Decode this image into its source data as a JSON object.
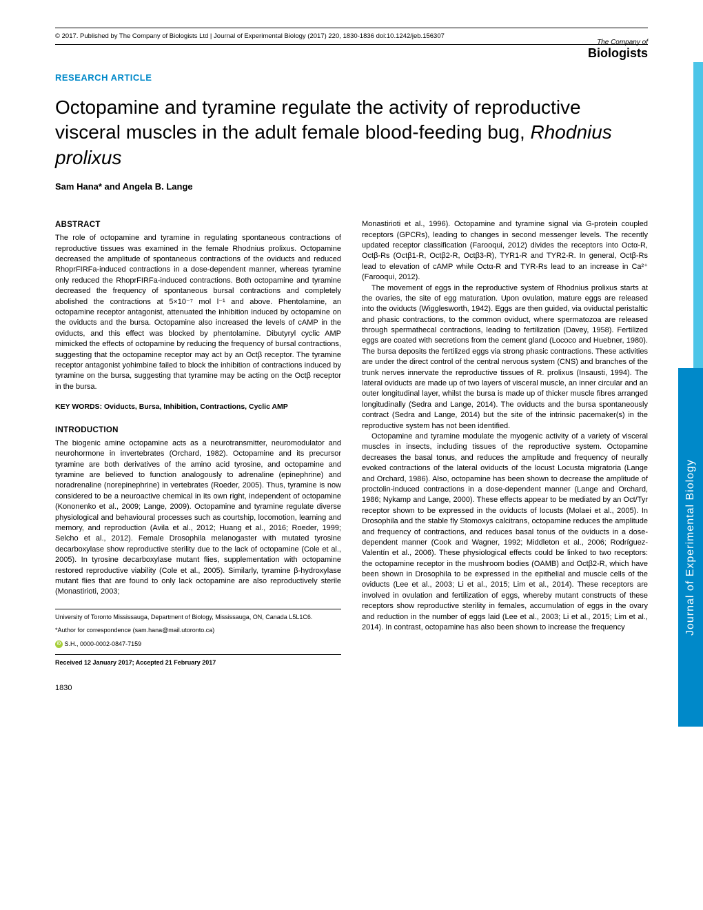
{
  "header": {
    "copyright": "© 2017. Published by The Company of Biologists Ltd | Journal of Experimental Biology (2017) 220, 1830-1836 doi:10.1242/jeb.156307"
  },
  "logo": {
    "company": "The Company of",
    "biologists": "Biologists"
  },
  "article": {
    "type": "RESEARCH ARTICLE",
    "title_part1": "Octopamine and tyramine regulate the activity of reproductive visceral muscles in the adult female blood-feeding bug, ",
    "title_italic": "Rhodnius prolixus",
    "authors": "Sam Hana* and Angela B. Lange"
  },
  "abstract": {
    "heading": "ABSTRACT",
    "text": "The role of octopamine and tyramine in regulating spontaneous contractions of reproductive tissues was examined in the female Rhodnius prolixus. Octopamine decreased the amplitude of spontaneous contractions of the oviducts and reduced RhoprFIRFa-induced contractions in a dose-dependent manner, whereas tyramine only reduced the RhoprFIRFa-induced contractions. Both octopamine and tyramine decreased the frequency of spontaneous bursal contractions and completely abolished the contractions at 5×10⁻⁷ mol l⁻¹ and above. Phentolamine, an octopamine receptor antagonist, attenuated the inhibition induced by octopamine on the oviducts and the bursa. Octopamine also increased the levels of cAMP in the oviducts, and this effect was blocked by phentolamine. Dibutyryl cyclic AMP mimicked the effects of octopamine by reducing the frequency of bursal contractions, suggesting that the octopamine receptor may act by an Octβ receptor. The tyramine receptor antagonist yohimbine failed to block the inhibition of contractions induced by tyramine on the bursa, suggesting that tyramine may be acting on the Octβ receptor in the bursa."
  },
  "keywords": {
    "text": "KEY WORDS: Oviducts, Bursa, Inhibition, Contractions, Cyclic AMP"
  },
  "introduction": {
    "heading": "INTRODUCTION",
    "para1": "The biogenic amine octopamine acts as a neurotransmitter, neuromodulator and neurohormone in invertebrates (Orchard, 1982). Octopamine and its precursor tyramine are both derivatives of the amino acid tyrosine, and octopamine and tyramine are believed to function analogously to adrenaline (epinephrine) and noradrenaline (norepinephrine) in vertebrates (Roeder, 2005). Thus, tyramine is now considered to be a neuroactive chemical in its own right, independent of octopamine (Kononenko et al., 2009; Lange, 2009). Octopamine and tyramine regulate diverse physiological and behavioural processes such as courtship, locomotion, learning and memory, and reproduction (Avila et al., 2012; Huang et al., 2016; Roeder, 1999; Selcho et al., 2012). Female Drosophila melanogaster with mutated tyrosine decarboxylase show reproductive sterility due to the lack of octopamine (Cole et al., 2005). In tyrosine decarboxylase mutant flies, supplementation with octopamine restored reproductive viability (Cole et al., 2005). Similarly, tyramine β-hydroxylase mutant flies that are found to only lack octopamine are also reproductively sterile (Monastirioti, 2003;"
  },
  "column2": {
    "para1": "Monastirioti et al., 1996). Octopamine and tyramine signal via G-protein coupled receptors (GPCRs), leading to changes in second messenger levels. The recently updated receptor classification (Farooqui, 2012) divides the receptors into Octα-R, Octβ-Rs (Octβ1-R, Octβ2-R, Octβ3-R), TYR1-R and TYR2-R. In general, Octβ-Rs lead to elevation of cAMP while Octα-R and TYR-Rs lead to an increase in Ca²⁺ (Farooqui, 2012).",
    "para2": "The movement of eggs in the reproductive system of Rhodnius prolixus starts at the ovaries, the site of egg maturation. Upon ovulation, mature eggs are released into the oviducts (Wigglesworth, 1942). Eggs are then guided, via oviductal peristaltic and phasic contractions, to the common oviduct, where spermatozoa are released through spermathecal contractions, leading to fertilization (Davey, 1958). Fertilized eggs are coated with secretions from the cement gland (Lococo and Huebner, 1980). The bursa deposits the fertilized eggs via strong phasic contractions. These activities are under the direct control of the central nervous system (CNS) and branches of the trunk nerves innervate the reproductive tissues of R. prolixus (Insausti, 1994). The lateral oviducts are made up of two layers of visceral muscle, an inner circular and an outer longitudinal layer, whilst the bursa is made up of thicker muscle fibres arranged longitudinally (Sedra and Lange, 2014). The oviducts and the bursa spontaneously contract (Sedra and Lange, 2014) but the site of the intrinsic pacemaker(s) in the reproductive system has not been identified.",
    "para3": "Octopamine and tyramine modulate the myogenic activity of a variety of visceral muscles in insects, including tissues of the reproductive system. Octopamine decreases the basal tonus, and reduces the amplitude and frequency of neurally evoked contractions of the lateral oviducts of the locust Locusta migratoria (Lange and Orchard, 1986). Also, octopamine has been shown to decrease the amplitude of proctolin-induced contractions in a dose-dependent manner (Lange and Orchard, 1986; Nykamp and Lange, 2000). These effects appear to be mediated by an Oct/Tyr receptor shown to be expressed in the oviducts of locusts (Molaei et al., 2005). In Drosophila and the stable fly Stomoxys calcitrans, octopamine reduces the amplitude and frequency of contractions, and reduces basal tonus of the oviducts in a dose-dependent manner (Cook and Wagner, 1992; Middleton et al., 2006; Rodríguez-Valentín et al., 2006). These physiological effects could be linked to two receptors: the octopamine receptor in the mushroom bodies (OAMB) and Octβ2-R, which have been shown in Drosophila to be expressed in the epithelial and muscle cells of the oviducts (Lee et al., 2003; Li et al., 2015; Lim et al., 2014). These receptors are involved in ovulation and fertilization of eggs, whereby mutant constructs of these receptors show reproductive sterility in females, accumulation of eggs in the ovary and reduction in the number of eggs laid (Lee et al., 2003; Li et al., 2015; Lim et al., 2014). In contrast, octopamine has also been shown to increase the frequency"
  },
  "footer": {
    "affiliation": "University of Toronto Mississauga, Department of Biology, Mississauga, ON, Canada L5L1C6.",
    "correspondence": "*Author for correspondence (sam.hana@mail.utoronto.ca)",
    "orcid": "S.H., 0000-0002-0847-7159",
    "received": "Received 12 January 2017; Accepted 21 February 2017"
  },
  "page_number": "1830",
  "side_tab": "Journal of Experimental Biology"
}
